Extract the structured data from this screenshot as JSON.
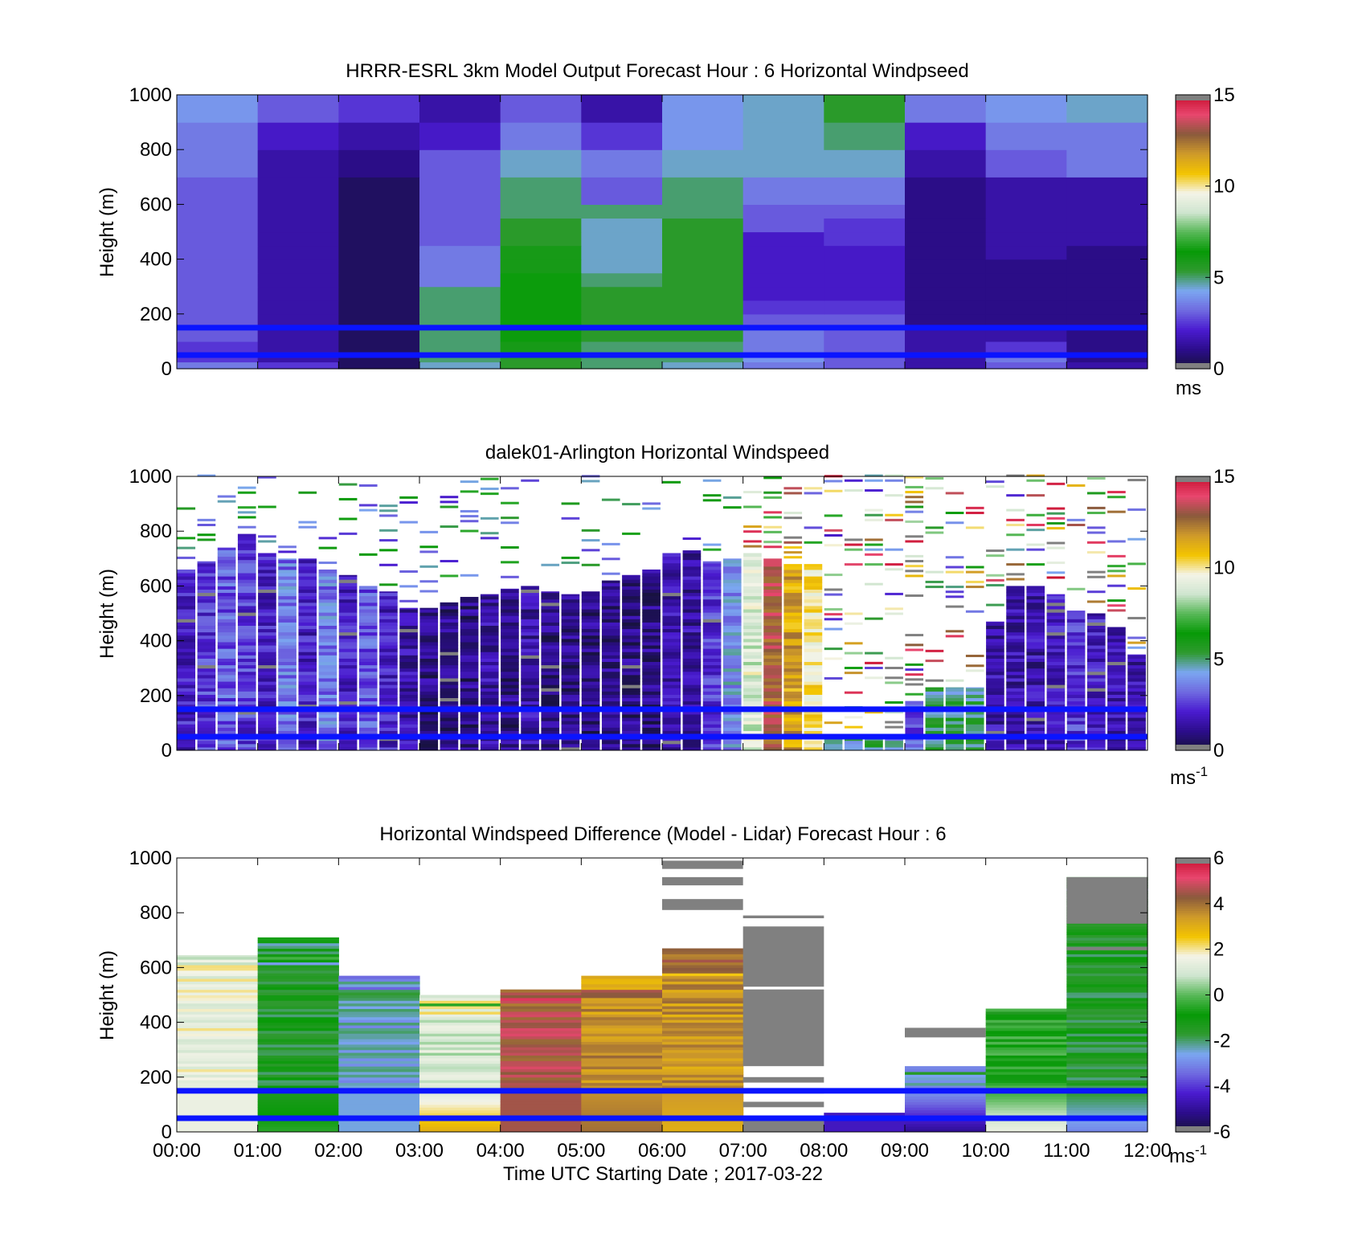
{
  "x_ticks": [
    "00:00",
    "01:00",
    "02:00",
    "03:00",
    "04:00",
    "05:00",
    "06:00",
    "07:00",
    "08:00",
    "09:00",
    "10:00",
    "11:00",
    "12:00"
  ],
  "xlabel": "Time UTC  Starting Date ; 2017-03-22",
  "colors": {
    "overlay_line": "#0a14ff",
    "missing": "#808080",
    "colormap": [
      "#16123a",
      "#2c0d8c",
      "#4a1bd0",
      "#6f6ae0",
      "#7ba6f0",
      "#2f9a2f",
      "#079a07",
      "#58b858",
      "#cfe5cf",
      "#f4f4e8",
      "#f3c400",
      "#cf9a2a",
      "#8a5a3c",
      "#e8466e",
      "#c8102e"
    ]
  },
  "chart_data": [
    {
      "type": "heatmap",
      "title": "HRRR-ESRL 3km Model Output   Forecast Hour : 6 Horizontal Windpseed",
      "ylabel": "Height (m)",
      "ylim": [
        0,
        1000
      ],
      "yticks": [
        0,
        200,
        400,
        600,
        800,
        1000
      ],
      "colorbar": {
        "range": [
          0,
          15
        ],
        "ticks": [
          0,
          5,
          10,
          15
        ],
        "unit": "ms"
      },
      "overlay_lines_m": [
        150,
        50
      ],
      "x_bins": [
        "00:00-01:00",
        "01:00-02:00",
        "02:00-03:00",
        "03:00-04:00",
        "04:00-05:00",
        "05:00-06:00",
        "06:00-07:00",
        "07:00-08:00",
        "08:00-09:00",
        "09:00-10:00",
        "10:00-11:00",
        "11:00-12:00"
      ],
      "height_levels_m": [
        0,
        25,
        60,
        100,
        150,
        200,
        250,
        300,
        350,
        400,
        450,
        500,
        550,
        600,
        700,
        800,
        900,
        1000
      ],
      "values": [
        [
          3.5,
          2.5,
          0.5,
          4.5,
          5.5,
          5.0,
          4.5,
          3.5,
          3.0,
          1.5,
          3.0,
          1.5
        ],
        [
          2.5,
          1.5,
          0.5,
          5.0,
          5.5,
          5.0,
          5.0,
          4.0,
          3.0,
          1.5,
          3.5,
          1.0
        ],
        [
          2.5,
          1.5,
          0.5,
          5.0,
          6.0,
          5.0,
          5.0,
          3.5,
          3.0,
          1.5,
          2.5,
          1.0
        ],
        [
          3.0,
          1.5,
          0.5,
          5.0,
          6.5,
          5.5,
          5.5,
          3.5,
          3.0,
          1.5,
          1.5,
          1.0
        ],
        [
          3.0,
          1.5,
          0.5,
          5.0,
          6.5,
          5.5,
          5.5,
          3.0,
          3.0,
          1.0,
          1.0,
          1.0
        ],
        [
          3.0,
          1.5,
          0.5,
          5.0,
          6.5,
          5.5,
          5.5,
          2.5,
          2.5,
          1.0,
          1.0,
          1.0
        ],
        [
          3.0,
          1.5,
          0.5,
          5.0,
          6.5,
          5.5,
          5.5,
          2.0,
          2.0,
          1.0,
          1.0,
          1.0
        ],
        [
          3.0,
          1.5,
          0.5,
          3.5,
          6.5,
          5.0,
          5.5,
          2.0,
          2.0,
          1.0,
          1.0,
          1.0
        ],
        [
          3.0,
          1.5,
          0.5,
          3.5,
          6.0,
          4.5,
          5.5,
          2.0,
          2.0,
          1.0,
          1.0,
          1.0
        ],
        [
          3.0,
          1.5,
          0.5,
          3.5,
          6.0,
          4.5,
          5.5,
          2.0,
          2.0,
          1.0,
          1.5,
          1.0
        ],
        [
          3.0,
          1.5,
          0.5,
          3.0,
          5.5,
          4.5,
          5.5,
          2.0,
          2.5,
          1.0,
          1.5,
          1.5
        ],
        [
          3.0,
          1.5,
          0.5,
          3.0,
          5.5,
          4.5,
          5.5,
          3.0,
          2.5,
          1.0,
          1.5,
          1.5
        ],
        [
          3.0,
          1.5,
          0.5,
          3.0,
          5.0,
          5.0,
          5.0,
          3.0,
          3.0,
          1.0,
          1.5,
          1.5
        ],
        [
          3.0,
          1.5,
          0.5,
          3.0,
          5.0,
          3.0,
          5.0,
          3.5,
          3.5,
          1.0,
          1.5,
          1.5
        ],
        [
          3.5,
          1.5,
          1.0,
          3.0,
          4.5,
          3.5,
          4.5,
          4.5,
          4.5,
          1.5,
          3.0,
          3.5
        ],
        [
          3.5,
          2.0,
          1.5,
          2.0,
          3.5,
          2.5,
          4.0,
          4.5,
          5.0,
          2.0,
          3.5,
          3.5
        ],
        [
          4.0,
          3.0,
          2.5,
          1.5,
          3.0,
          1.5,
          4.0,
          4.5,
          5.5,
          3.5,
          4.0,
          4.5
        ]
      ]
    },
    {
      "type": "heatmap",
      "title": "dalek01-Arlington  Horizontal Windspeed",
      "ylabel": "Height (m)",
      "ylim": [
        0,
        1000
      ],
      "yticks": [
        0,
        200,
        400,
        600,
        800,
        1000
      ],
      "colorbar": {
        "range": [
          0,
          15
        ],
        "ticks": [
          0,
          5,
          10,
          15
        ],
        "unit": "ms",
        "unit_sup": "-1"
      },
      "overlay_lines_m": [
        150,
        50
      ],
      "x_centers": [
        "00:07",
        "00:22",
        "00:37",
        "00:52",
        "01:07",
        "01:22",
        "01:37",
        "01:52",
        "02:07",
        "02:22",
        "02:37",
        "02:52",
        "03:07",
        "03:22",
        "03:37",
        "03:52",
        "04:07",
        "04:22",
        "04:37",
        "04:52",
        "05:07",
        "05:22",
        "05:37",
        "05:52",
        "06:07",
        "06:22",
        "06:37",
        "06:52",
        "07:07",
        "07:22",
        "07:37",
        "07:52",
        "08:07",
        "08:22",
        "08:37",
        "08:52",
        "09:07",
        "09:22",
        "09:37",
        "09:52",
        "10:07",
        "10:22",
        "10:37",
        "10:52",
        "11:07",
        "11:22",
        "11:37",
        "11:52"
      ],
      "column_top_m": [
        660,
        690,
        740,
        790,
        720,
        700,
        700,
        660,
        640,
        600,
        580,
        520,
        520,
        540,
        560,
        570,
        590,
        600,
        580,
        570,
        580,
        620,
        640,
        660,
        720,
        730,
        690,
        700,
        720,
        700,
        680,
        680,
        40,
        60,
        60,
        60,
        180,
        230,
        230,
        230,
        470,
        600,
        600,
        570,
        510,
        500,
        450,
        350
      ],
      "column_speed_ms": [
        2.0,
        2.5,
        3.0,
        2.5,
        2.0,
        3.5,
        2.0,
        3.5,
        2.0,
        3.0,
        2.0,
        1.5,
        1.0,
        1.0,
        1.0,
        1.5,
        1.0,
        1.5,
        1.0,
        1.0,
        1.0,
        1.0,
        1.0,
        1.0,
        1.5,
        1.5,
        2.5,
        4.0,
        9.0,
        13.0,
        11.5,
        10.0,
        5.0,
        4.5,
        5.0,
        4.0,
        3.0,
        5.0,
        5.0,
        5.0,
        1.5,
        1.5,
        1.5,
        2.0,
        2.5,
        2.0,
        1.5,
        1.5
      ],
      "scattered_upper_returns": "2-15 ms-1 between 500-1000 m after 07:00; sparse 3-7 ms-1 above 700 m 00:30-03:30"
    },
    {
      "type": "heatmap",
      "title": "Horizontal Windspeed Difference (Model - Lidar) Forecast Hour : 6",
      "ylabel": "Height (m)",
      "ylim": [
        0,
        1000
      ],
      "yticks": [
        0,
        200,
        400,
        600,
        800,
        1000
      ],
      "colorbar": {
        "range": [
          -6,
          6
        ],
        "ticks": [
          -6,
          -4,
          -2,
          0,
          2,
          4,
          6
        ],
        "unit": "ms",
        "unit_sup": "-1"
      },
      "overlay_lines_m": [
        150,
        50
      ],
      "x_bins": [
        "00:00-01:00",
        "01:00-02:00",
        "02:00-03:00",
        "03:00-04:00",
        "04:00-05:00",
        "05:00-06:00",
        "06:00-07:00",
        "07:00-08:00",
        "08:00-09:00",
        "09:00-10:00",
        "10:00-11:00",
        "11:00-12:00"
      ],
      "column_top_m": [
        645,
        710,
        570,
        500,
        520,
        570,
        670,
        790,
        70,
        240,
        450,
        930
      ],
      "column_difference_ms": [
        1.5,
        -1.5,
        -2.5,
        1.0,
        4.5,
        3.5,
        3.5,
        null,
        -4.5,
        -2.5,
        -0.5,
        -1.5
      ],
      "surface_difference_ms": [
        1.5,
        -0.5,
        -2.5,
        3.0,
        4.5,
        4.0,
        3.0,
        -5.5,
        -4.5,
        -5.0,
        1.5,
        -3.0
      ]
    }
  ]
}
